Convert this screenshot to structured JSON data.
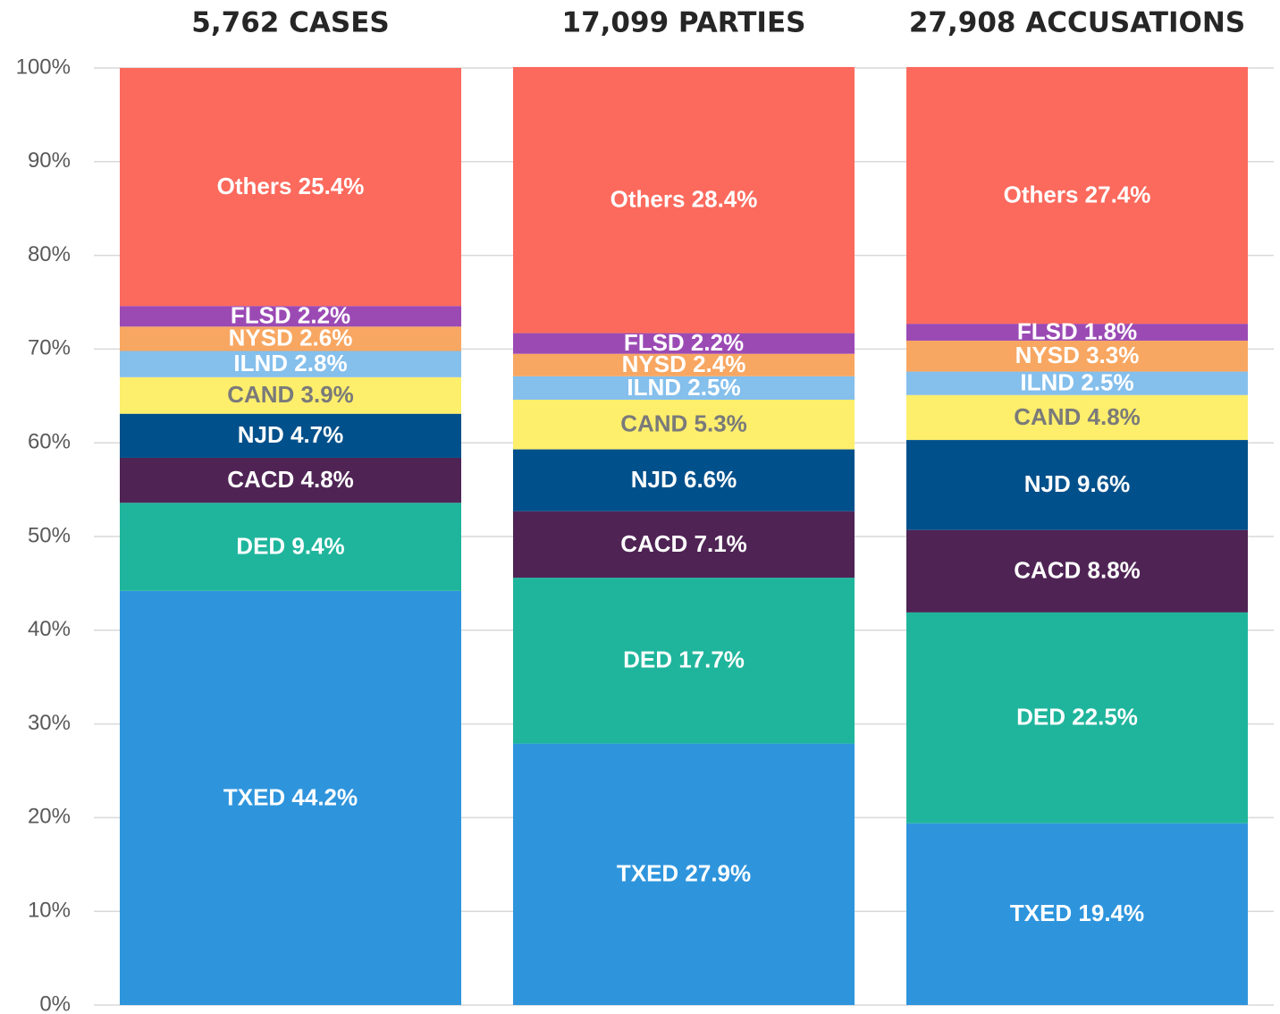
{
  "chart_data": {
    "type": "stacked_bar",
    "categories": [
      "5,762 CASES",
      "17,099 PARTIES",
      "27,908 ACCUSATIONS"
    ],
    "ylim": [
      0,
      100
    ],
    "yticks": [
      {
        "value": 0,
        "label": "0%"
      },
      {
        "value": 10,
        "label": "10%"
      },
      {
        "value": 20,
        "label": "20%"
      },
      {
        "value": 30,
        "label": "30%"
      },
      {
        "value": 40,
        "label": "40%"
      },
      {
        "value": 50,
        "label": "50%"
      },
      {
        "value": 60,
        "label": "60%"
      },
      {
        "value": 70,
        "label": "70%"
      },
      {
        "value": 80,
        "label": "80%"
      },
      {
        "value": 90,
        "label": "90%"
      },
      {
        "value": 100,
        "label": "100%"
      }
    ],
    "grid": true,
    "series": [
      {
        "name": "TXED",
        "color": "#2e95dd",
        "label_color": "#ffffff",
        "values": [
          44.2,
          27.9,
          19.4
        ],
        "value_labels": [
          "TXED 44.2%",
          "TXED 27.9%",
          "TXED 19.4%"
        ]
      },
      {
        "name": "DED",
        "color": "#1fb59c",
        "label_color": "#ffffff",
        "values": [
          9.4,
          17.7,
          22.5
        ],
        "value_labels": [
          "DED 9.4%",
          "DED 17.7%",
          "DED 22.5%"
        ]
      },
      {
        "name": "CACD",
        "color": "#4f2455",
        "label_color": "#ffffff",
        "values": [
          4.8,
          7.1,
          8.8
        ],
        "value_labels": [
          "CACD 4.8%",
          "CACD 7.1%",
          "CACD 8.8%"
        ]
      },
      {
        "name": "NJD",
        "color": "#00508b",
        "label_color": "#ffffff",
        "values": [
          4.7,
          6.6,
          9.6
        ],
        "value_labels": [
          "NJD 4.7%",
          "NJD 6.6%",
          "NJD 9.6%"
        ]
      },
      {
        "name": "CAND",
        "color": "#fdee6c",
        "label_color": "#7a7a7a",
        "values": [
          3.9,
          5.3,
          4.8
        ],
        "value_labels": [
          "CAND 3.9%",
          "CAND 5.3%",
          "CAND 4.8%"
        ]
      },
      {
        "name": "ILND",
        "color": "#85bfec",
        "label_color": "#ffffff",
        "values": [
          2.8,
          2.5,
          2.5
        ],
        "value_labels": [
          "ILND 2.8%",
          "ILND 2.5%",
          "ILND 2.5%"
        ]
      },
      {
        "name": "NYSD",
        "color": "#f8a762",
        "label_color": "#ffffff",
        "values": [
          2.6,
          2.4,
          3.3
        ],
        "value_labels": [
          "NYSD 2.6%",
          "NYSD 2.4%",
          "NYSD 3.3%"
        ]
      },
      {
        "name": "FLSD",
        "color": "#9b4ab4",
        "label_color": "#ffffff",
        "values": [
          2.2,
          2.2,
          1.8
        ],
        "value_labels": [
          "FLSD 2.2%",
          "FLSD 2.2%",
          "FLSD 1.8%"
        ]
      },
      {
        "name": "Others",
        "color": "#fc6a5d",
        "label_color": "#ffffff",
        "values": [
          25.4,
          28.4,
          27.4
        ],
        "value_labels": [
          "Others 25.4%",
          "Others 28.4%",
          "Others 27.4%"
        ]
      }
    ]
  }
}
